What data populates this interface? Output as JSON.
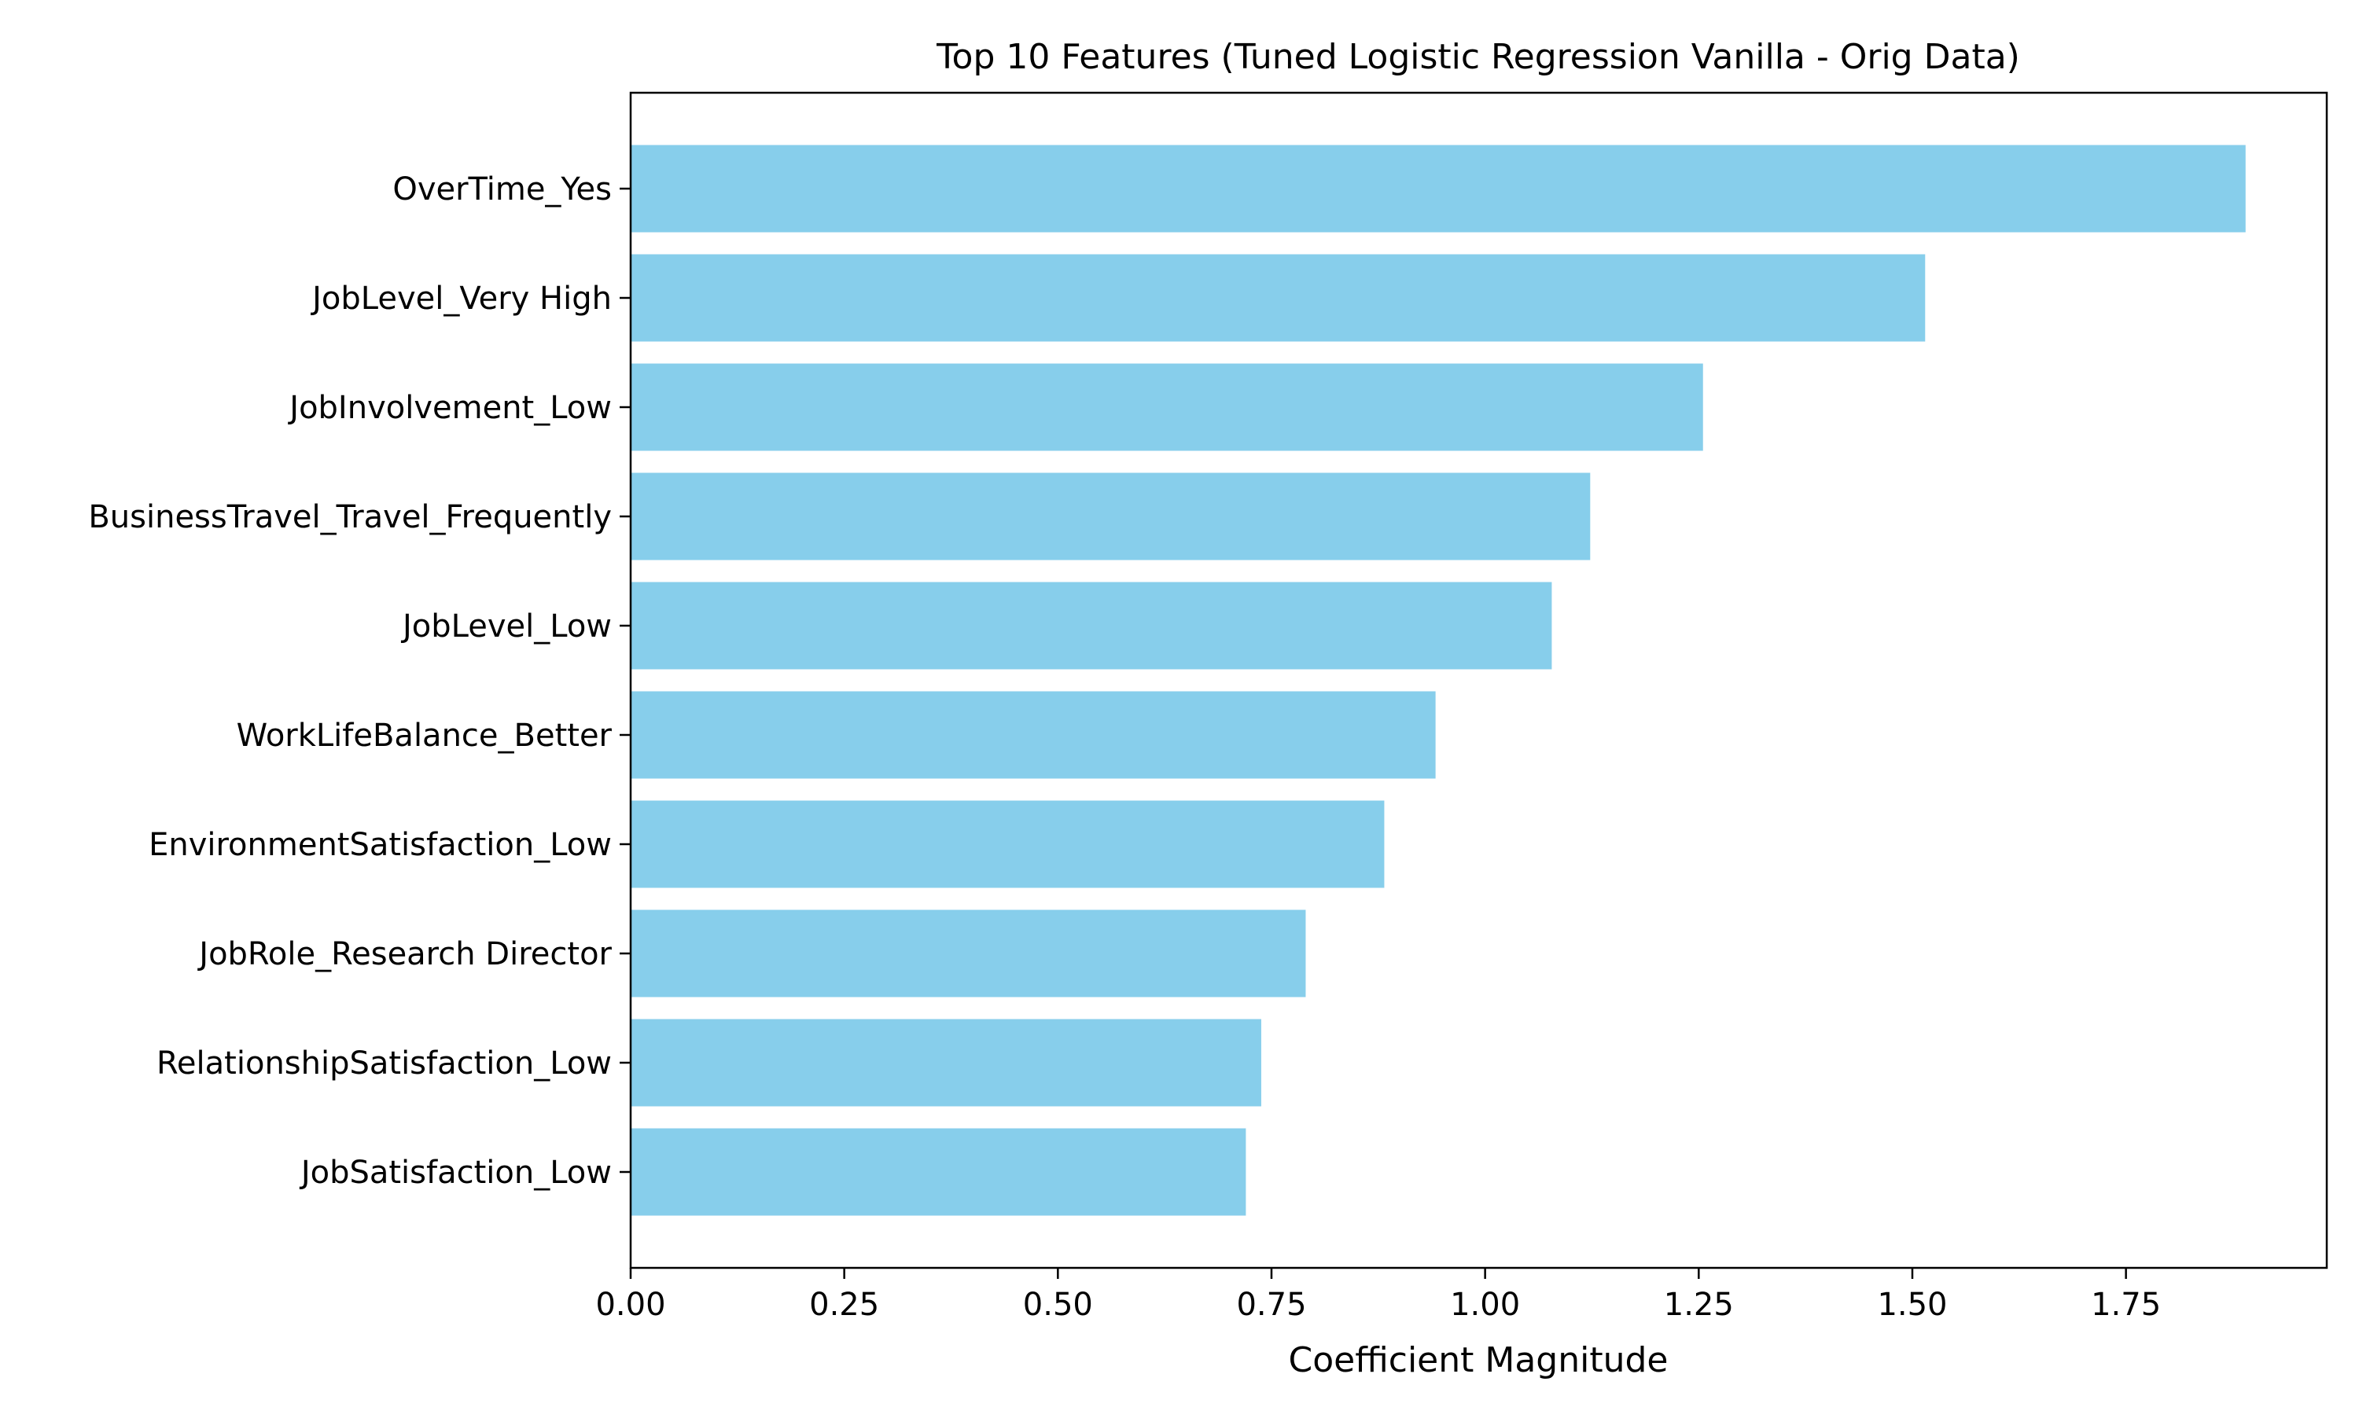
{
  "chart_data": {
    "type": "bar",
    "orientation": "horizontal",
    "title": "Top 10 Features (Tuned Logistic Regression Vanilla - Orig Data)",
    "xlabel": "Coefficient Magnitude",
    "ylabel": "",
    "categories": [
      "OverTime_Yes",
      "JobLevel_Very High",
      "JobInvolvement_Low",
      "BusinessTravel_Travel_Frequently",
      "JobLevel_Low",
      "WorkLifeBalance_Better",
      "EnvironmentSatisfaction_Low",
      "JobRole_Research Director",
      "RelationshipSatisfaction_Low",
      "JobSatisfaction_Low"
    ],
    "values": [
      1.89,
      1.515,
      1.255,
      1.123,
      1.078,
      0.942,
      0.882,
      0.79,
      0.738,
      0.72
    ],
    "xlim": [
      0,
      1.985
    ],
    "xticks": [
      0.0,
      0.25,
      0.5,
      0.75,
      1.0,
      1.25,
      1.5,
      1.75
    ],
    "xtick_labels": [
      "0.00",
      "0.25",
      "0.50",
      "0.75",
      "1.00",
      "1.25",
      "1.50",
      "1.75"
    ],
    "bar_color": "#87ceeb",
    "grid": false
  }
}
